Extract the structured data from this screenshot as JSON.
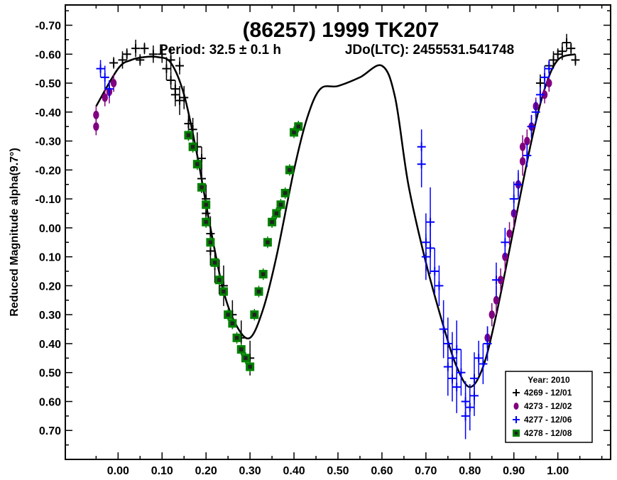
{
  "chart_data": {
    "type": "scatter",
    "title": "(86257) 1999 TK207",
    "subtitle_period": "Period: 32.5 ± 0.1 h",
    "subtitle_epoch": "JDo(LTC): 2455531.541748",
    "ylabel": "Reduced Magnitude alpha(9.7°)",
    "xlabel": "",
    "xlim": [
      -0.12,
      1.12
    ],
    "ylim": [
      -0.77,
      0.8
    ],
    "y_inverted": true,
    "grid": false,
    "x_ticks": [
      "0.00",
      "0.10",
      "0.20",
      "0.30",
      "0.40",
      "0.50",
      "0.60",
      "0.70",
      "0.80",
      "0.90",
      "1.00"
    ],
    "y_ticks": [
      "-0.70",
      "-0.60",
      "-0.50",
      "-0.40",
      "-0.30",
      "-0.20",
      "-0.10",
      "0.00",
      "0.10",
      "0.20",
      "0.30",
      "0.40",
      "0.50",
      "0.60",
      "0.70"
    ],
    "legend": {
      "title": "Year: 2010",
      "placement": "bottom-right",
      "entries": [
        {
          "label": "4269 - 12/01",
          "marker": "plus",
          "color": "#000000"
        },
        {
          "label": "4273 - 12/02",
          "marker": "circle",
          "color": "#800080"
        },
        {
          "label": "4277 - 12/06",
          "marker": "plus",
          "color": "#0000ff"
        },
        {
          "label": "4278 - 12/08",
          "marker": "square",
          "color": "#008000"
        }
      ]
    },
    "fit_curve": {
      "x": [
        -0.05,
        0.0,
        0.03,
        0.06,
        0.09,
        0.12,
        0.15,
        0.18,
        0.21,
        0.24,
        0.27,
        0.3,
        0.33,
        0.36,
        0.4,
        0.43,
        0.46,
        0.5,
        0.55,
        0.6,
        0.63,
        0.66,
        0.7,
        0.74,
        0.77,
        0.8,
        0.83,
        0.86,
        0.9,
        0.94,
        0.97,
        1.0,
        1.04
      ],
      "y": [
        -0.42,
        -0.55,
        -0.58,
        -0.59,
        -0.59,
        -0.57,
        -0.46,
        -0.25,
        0.0,
        0.22,
        0.34,
        0.38,
        0.28,
        0.1,
        -0.2,
        -0.38,
        -0.48,
        -0.49,
        -0.52,
        -0.56,
        -0.45,
        -0.15,
        0.12,
        0.34,
        0.48,
        0.55,
        0.48,
        0.3,
        0.0,
        -0.3,
        -0.48,
        -0.58,
        -0.6
      ]
    },
    "series": [
      {
        "name": "4269 - 12/01",
        "marker": "plus",
        "color": "#000000",
        "x": [
          -0.01,
          0.01,
          0.02,
          0.04,
          0.05,
          0.06,
          0.08,
          0.1,
          0.11,
          0.12,
          0.12,
          0.13,
          0.13,
          0.14,
          0.14,
          0.15,
          0.16,
          0.17,
          0.18,
          0.19,
          0.19,
          0.2,
          0.2,
          0.21,
          0.21,
          0.22,
          0.23,
          0.24,
          0.26,
          0.28,
          0.3,
          0.96,
          0.98,
          0.99,
          1.0,
          1.01,
          1.02,
          1.03,
          1.04
        ],
        "y": [
          -0.57,
          -0.58,
          -0.6,
          -0.62,
          -0.58,
          -0.62,
          -0.6,
          -0.6,
          -0.55,
          -0.51,
          -0.58,
          -0.46,
          -0.48,
          -0.44,
          -0.56,
          -0.45,
          -0.36,
          -0.34,
          -0.28,
          -0.24,
          -0.17,
          -0.1,
          -0.05,
          0.02,
          0.08,
          0.13,
          0.17,
          0.2,
          0.3,
          0.38,
          0.45,
          -0.5,
          -0.56,
          -0.58,
          -0.6,
          -0.61,
          -0.64,
          -0.62,
          -0.58
        ],
        "err": [
          0.02,
          0.03,
          0.02,
          0.03,
          0.02,
          0.02,
          0.03,
          0.03,
          0.04,
          0.03,
          0.04,
          0.04,
          0.03,
          0.05,
          0.03,
          0.04,
          0.03,
          0.04,
          0.05,
          0.04,
          0.05,
          0.05,
          0.04,
          0.06,
          0.05,
          0.06,
          0.06,
          0.07,
          0.05,
          0.06,
          0.06,
          0.03,
          0.02,
          0.03,
          0.02,
          0.03,
          0.03,
          0.02,
          0.02
        ]
      },
      {
        "name": "4273 - 12/02",
        "marker": "circle",
        "color": "#800080",
        "x": [
          -0.05,
          -0.05,
          -0.03,
          -0.02,
          -0.01,
          0.84,
          0.85,
          0.86,
          0.87,
          0.88,
          0.89,
          0.9,
          0.91,
          0.92,
          0.92,
          0.93,
          0.94,
          0.95,
          0.97,
          0.98
        ],
        "y": [
          -0.35,
          -0.39,
          -0.45,
          -0.47,
          -0.5,
          0.38,
          0.3,
          0.25,
          0.18,
          0.1,
          0.02,
          -0.05,
          -0.15,
          -0.23,
          -0.28,
          -0.3,
          -0.35,
          -0.42,
          -0.46,
          -0.5
        ],
        "err": [
          0.03,
          0.03,
          0.03,
          0.04,
          0.03,
          0.04,
          0.04,
          0.05,
          0.04,
          0.05,
          0.04,
          0.05,
          0.04,
          0.05,
          0.04,
          0.04,
          0.04,
          0.03,
          0.03,
          0.03
        ]
      },
      {
        "name": "4277 - 12/06",
        "marker": "plus",
        "color": "#0000ff",
        "x": [
          -0.04,
          -0.03,
          -0.02,
          0.69,
          0.69,
          0.7,
          0.7,
          0.71,
          0.71,
          0.72,
          0.73,
          0.74,
          0.75,
          0.75,
          0.76,
          0.76,
          0.77,
          0.77,
          0.78,
          0.79,
          0.79,
          0.8,
          0.81,
          0.81,
          0.82,
          0.83,
          0.84,
          0.86,
          0.88,
          0.9,
          0.91,
          0.93,
          0.94,
          0.95,
          0.96,
          0.97,
          0.98
        ],
        "y": [
          -0.55,
          -0.52,
          -0.48,
          -0.28,
          -0.22,
          0.05,
          0.1,
          -0.02,
          0.07,
          0.15,
          0.2,
          0.35,
          0.4,
          0.48,
          0.45,
          0.52,
          0.42,
          0.55,
          0.5,
          0.6,
          0.65,
          0.62,
          0.52,
          0.58,
          0.45,
          0.47,
          0.4,
          0.18,
          0.05,
          -0.1,
          -0.15,
          -0.25,
          -0.35,
          -0.4,
          -0.46,
          -0.52,
          -0.55
        ],
        "err": [
          0.03,
          0.04,
          0.03,
          0.06,
          0.08,
          0.1,
          0.08,
          0.12,
          0.09,
          0.08,
          0.07,
          0.1,
          0.09,
          0.1,
          0.09,
          0.08,
          0.1,
          0.09,
          0.08,
          0.07,
          0.08,
          0.08,
          0.09,
          0.07,
          0.06,
          0.07,
          0.06,
          0.06,
          0.05,
          0.06,
          0.05,
          0.04,
          0.04,
          0.04,
          0.03,
          0.04,
          0.03
        ]
      },
      {
        "name": "4278 - 12/08",
        "marker": "square",
        "color": "#008000",
        "x": [
          0.16,
          0.17,
          0.18,
          0.19,
          0.2,
          0.2,
          0.21,
          0.22,
          0.23,
          0.24,
          0.25,
          0.26,
          0.27,
          0.28,
          0.29,
          0.3,
          0.31,
          0.32,
          0.33,
          0.34,
          0.35,
          0.36,
          0.37,
          0.38,
          0.39,
          0.4,
          0.41
        ],
        "y": [
          -0.32,
          -0.28,
          -0.22,
          -0.14,
          -0.08,
          -0.02,
          0.05,
          0.12,
          0.18,
          0.22,
          0.3,
          0.33,
          0.38,
          0.42,
          0.45,
          0.48,
          0.3,
          0.22,
          0.16,
          0.05,
          -0.02,
          -0.05,
          -0.08,
          -0.12,
          -0.2,
          -0.33,
          -0.35
        ],
        "err": [
          0.02,
          0.02,
          0.02,
          0.02,
          0.02,
          0.02,
          0.02,
          0.02,
          0.02,
          0.02,
          0.02,
          0.02,
          0.02,
          0.02,
          0.02,
          0.02,
          0.02,
          0.02,
          0.02,
          0.02,
          0.02,
          0.02,
          0.02,
          0.02,
          0.02,
          0.02,
          0.02
        ]
      }
    ]
  }
}
